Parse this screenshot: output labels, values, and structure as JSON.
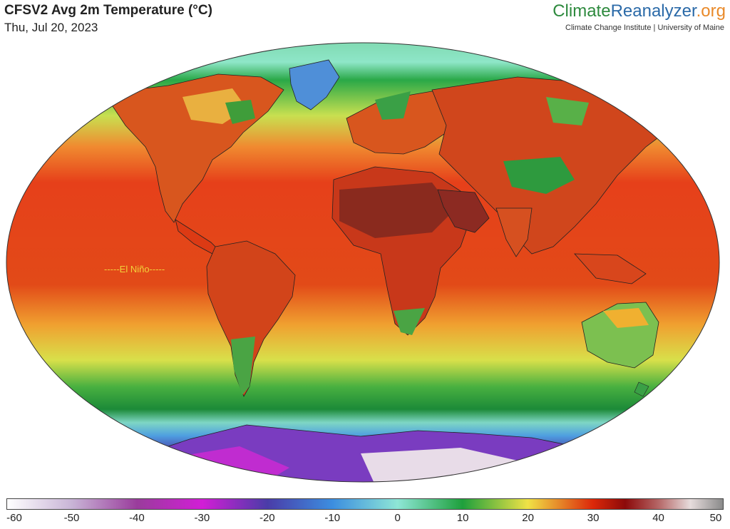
{
  "header": {
    "title": "CFSV2 Avg 2m Temperature (°C)",
    "date": "Thu, Jul 20, 2023"
  },
  "brand": {
    "part1": "Climate",
    "part2": "Reanalyzer",
    "part3": ".org",
    "subtitle": "Climate Change Institute | University of Maine",
    "colors": {
      "part1": "#2e8a3e",
      "part2": "#2b6aa8",
      "part3": "#e98a2a"
    }
  },
  "map": {
    "projection": "world ellipse (Robinson-like)",
    "annotation": "-----El Niño-----",
    "annotation_color": "#f2d23a"
  },
  "colorbar": {
    "min": -60,
    "max": 50,
    "tick_labels": [
      "-60",
      "-50",
      "-40",
      "-30",
      "-20",
      "-10",
      "0",
      "10",
      "20",
      "30",
      "40",
      "50"
    ],
    "stops": [
      [
        "-60",
        "#ffffff"
      ],
      [
        "-50",
        "#c8b4d6"
      ],
      [
        "-40",
        "#9a3c9c"
      ],
      [
        "-30",
        "#d21ed6"
      ],
      [
        "-20",
        "#4a3ca8"
      ],
      [
        "-10",
        "#3c8ee0"
      ],
      [
        "0",
        "#8ee6d6"
      ],
      [
        "10",
        "#1ea03c"
      ],
      [
        "20",
        "#f0e246"
      ],
      [
        "30",
        "#dc280a"
      ],
      [
        "35",
        "#8c0a0a"
      ],
      [
        "40",
        "#b46464"
      ],
      [
        "45",
        "#e6dcdc"
      ],
      [
        "50",
        "#8a8a8a"
      ]
    ]
  }
}
